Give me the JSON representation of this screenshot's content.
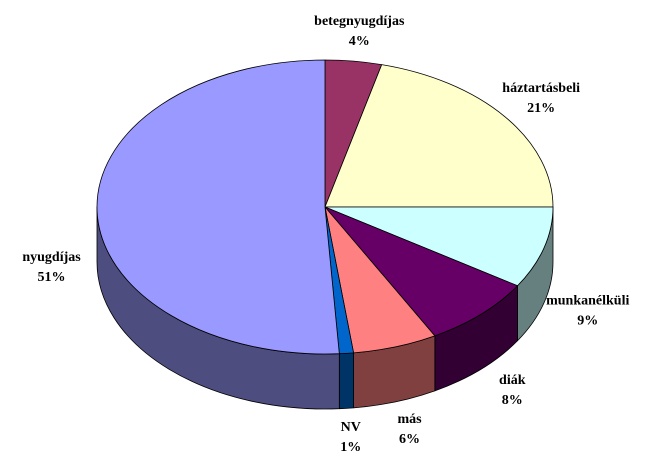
{
  "chart_data": {
    "type": "pie",
    "categories": [
      "betegnyugdíjas",
      "háztartásbeli",
      "munkanélküli",
      "diák",
      "más",
      "NV",
      "nyugdíjas"
    ],
    "values": [
      4,
      21,
      9,
      8,
      6,
      1,
      51
    ],
    "value_labels": [
      "4%",
      "21%",
      "9%",
      "8%",
      "6%",
      "1%",
      "51%"
    ],
    "colors": [
      "#993366",
      "#ffffcc",
      "#ccffff",
      "#660066",
      "#ff8080",
      "#0066cc",
      "#9999ff"
    ]
  }
}
